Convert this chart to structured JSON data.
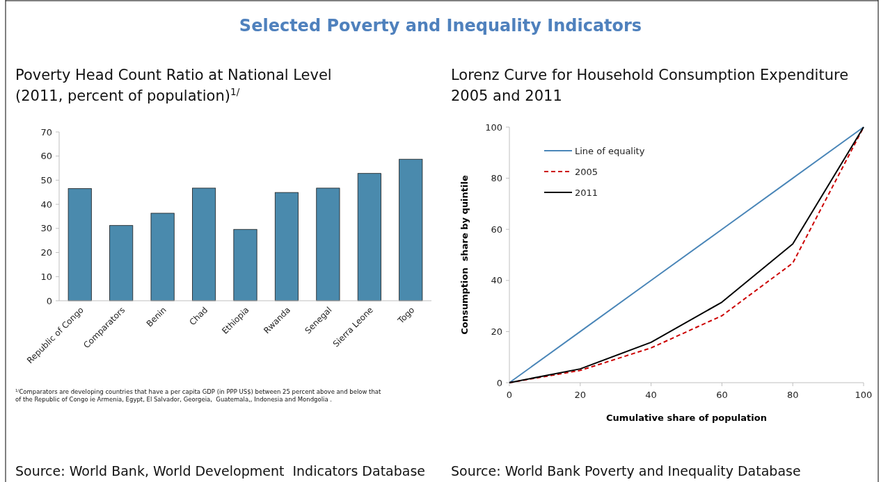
{
  "chart_data": [
    {
      "type": "bar",
      "title": "Selected Poverty and Inequality Indicators",
      "subtitle": "Poverty Head Count Ratio at National Level\n(2011, percent of population)$^{1/}$",
      "categories": [
        "Republic of Congo",
        "Comparators",
        "Benin",
        "Chad",
        "Ethiopia",
        "Rwanda",
        "Senegal",
        "Sierra Leone",
        "Togo"
      ],
      "values": [
        46.5,
        31.2,
        36.3,
        46.7,
        29.6,
        44.9,
        46.7,
        52.8,
        58.7
      ],
      "color": "#4a8aad",
      "ylim": [
        0,
        70
      ],
      "yticks": [
        0,
        10,
        20,
        30,
        40,
        50,
        60,
        70
      ],
      "grid": false,
      "annotations": [
        "$^{1/}$Comparators are developing countries that have a per capita GDP (in PPP US$) between 25 percent above and below that\nof the Republic of Congo ie Armenia, Egypt, El Salvador, Georgeia,  Guatemala,, Indonesia and Mondgolia .",
        "Source: World Bank, World Development  Indicators Database"
      ]
    },
    {
      "type": "line",
      "subtitle": "Lorenz Curve for Household Consumption Expenditure\n2005 and 2011",
      "xlabel": "Cumulative share of population",
      "ylabel": "Consumption  share by quintile",
      "x": [
        0,
        20,
        40,
        60,
        80,
        100
      ],
      "series": [
        {
          "name": "Line of equality",
          "color": "#4a86b8",
          "line_style": "solid",
          "values": [
            0,
            20,
            40,
            60,
            80,
            100
          ]
        },
        {
          "name": "2005",
          "color": "#cc0000",
          "line_style": "dashed",
          "values": [
            0,
            4.8,
            13.6,
            26.2,
            46.8,
            100
          ]
        },
        {
          "name": "2011",
          "color": "#000000",
          "line_style": "solid",
          "values": [
            0,
            5.4,
            15.8,
            31.5,
            54.3,
            100
          ]
        }
      ],
      "xlim": [
        0,
        100
      ],
      "xticks": [
        0,
        20,
        40,
        60,
        80,
        100
      ],
      "ylim": [
        0,
        100
      ],
      "yticks": [
        0,
        20,
        40,
        60,
        80,
        100
      ],
      "grid": false,
      "legend": "top left",
      "marker": "none",
      "annotations": [
        "Source: World Bank Poverty and Inequality Database"
      ]
    }
  ]
}
